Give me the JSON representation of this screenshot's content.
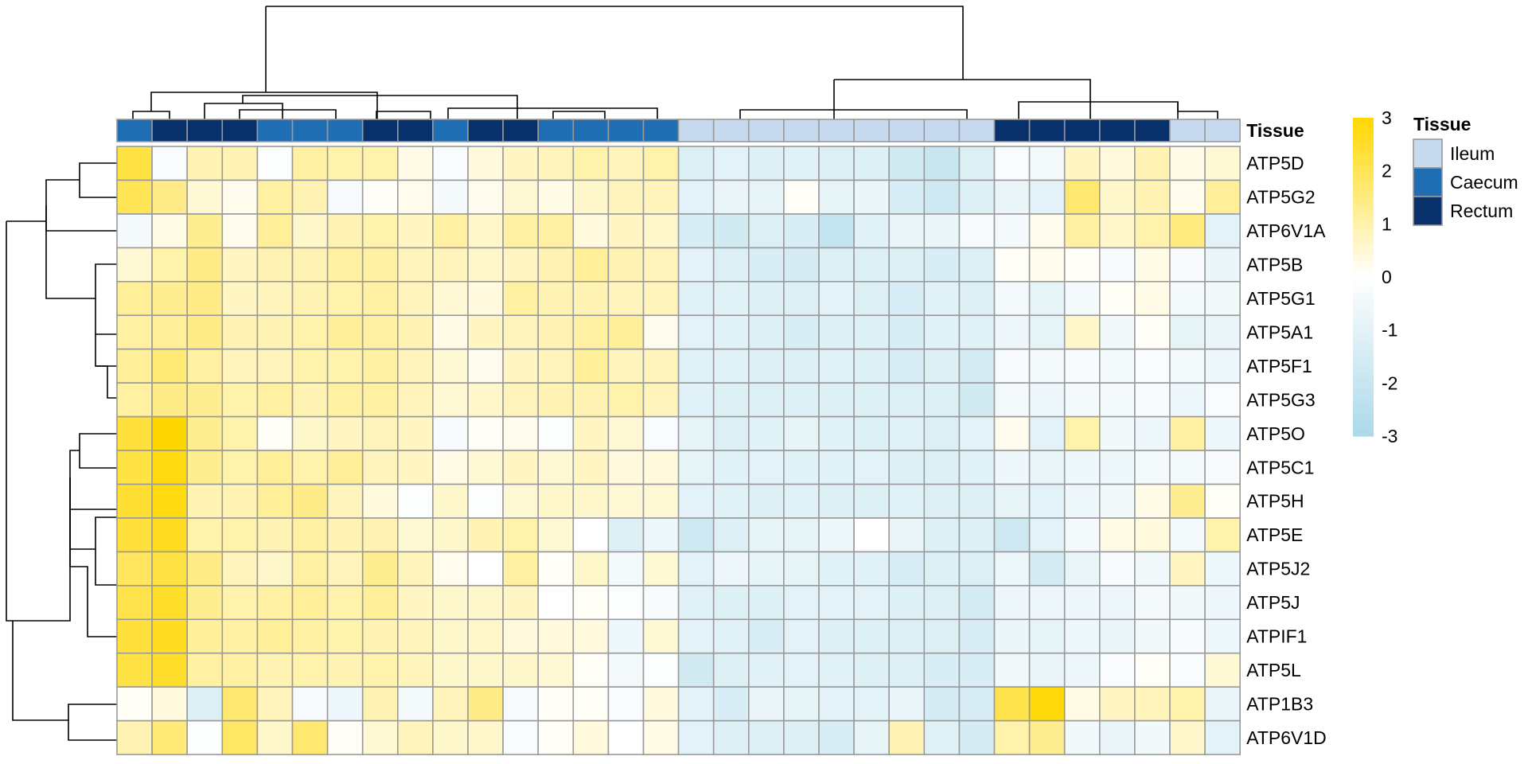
{
  "chart_data": {
    "type": "heatmap",
    "title": "",
    "xlabel": "",
    "ylabel": "",
    "rows": [
      "ATP5D",
      "ATP5G2",
      "ATP6V1A",
      "ATP5B",
      "ATP5G1",
      "ATP5A1",
      "ATP5F1",
      "ATP5G3",
      "ATP5O",
      "ATP5C1",
      "ATP5H",
      "ATP5E",
      "ATP5J2",
      "ATP5J",
      "ATPIF1",
      "ATP5L",
      "ATP1B3",
      "ATP6V1D"
    ],
    "columns": [
      "",
      "",
      "",
      "",
      "",
      "",
      "",
      "",
      "",
      "",
      "",
      "",
      "",
      "",
      "",
      "",
      "",
      "",
      "",
      "",
      "",
      "",
      "",
      "",
      "",
      "",
      "",
      "",
      "",
      "",
      "",
      ""
    ],
    "annotation": {
      "name": "Tissue",
      "legend_title": "Tissue",
      "levels": [
        {
          "name": "Ileum",
          "color": "#c6d9ef"
        },
        {
          "name": "Caecum",
          "color": "#1f6db3"
        },
        {
          "name": "Rectum",
          "color": "#08306b"
        }
      ],
      "column_tissue": [
        "Caecum",
        "Rectum",
        "Rectum",
        "Rectum",
        "Caecum",
        "Caecum",
        "Caecum",
        "Rectum",
        "Rectum",
        "Caecum",
        "Rectum",
        "Rectum",
        "Caecum",
        "Caecum",
        "Caecum",
        "Caecum",
        "Ileum",
        "Ileum",
        "Ileum",
        "Ileum",
        "Ileum",
        "Ileum",
        "Ileum",
        "Ileum",
        "Ileum",
        "Rectum",
        "Rectum",
        "Rectum",
        "Rectum",
        "Rectum",
        "Ileum",
        "Ileum"
      ]
    },
    "color_scale": {
      "min": -3,
      "max": 3,
      "low_color": "#abd9e9",
      "mid_color": "#ffffff",
      "high_color": "#ffd700",
      "ticks": [
        "3",
        "2",
        "1",
        "0",
        "-1",
        "-2",
        "-3"
      ],
      "tick_values": [
        3,
        2,
        1,
        0,
        -1,
        -2,
        -3
      ]
    },
    "values": [
      [
        2.2,
        -0.2,
        0.9,
        0.9,
        -0.1,
        1.1,
        1.0,
        1.0,
        0.3,
        -0.2,
        0.4,
        0.7,
        0.8,
        1.0,
        0.8,
        1.0,
        -1.3,
        -1.0,
        -1.2,
        -1.1,
        -1.3,
        -1.2,
        -1.6,
        -2.0,
        -1.3,
        -0.2,
        -0.4,
        0.7,
        0.4,
        0.9,
        0.3,
        0.5
      ],
      [
        2.0,
        1.4,
        0.5,
        0.2,
        1.1,
        0.9,
        -0.3,
        0.1,
        0.2,
        -0.4,
        0.2,
        0.5,
        0.3,
        0.6,
        0.8,
        0.8,
        -1.0,
        -0.8,
        -0.9,
        0.1,
        -0.9,
        -0.7,
        -1.4,
        -1.7,
        -1.2,
        -0.8,
        -1.0,
        1.7,
        0.6,
        0.9,
        0.2,
        1.2
      ],
      [
        -0.4,
        0.3,
        1.3,
        0.2,
        1.2,
        0.6,
        0.9,
        1.0,
        0.7,
        1.1,
        0.6,
        1.1,
        1.1,
        0.4,
        0.7,
        0.6,
        -1.4,
        -1.6,
        -1.3,
        -1.4,
        -2.1,
        -1.1,
        -0.8,
        -0.7,
        -0.3,
        -0.4,
        0.2,
        1.1,
        0.6,
        1.0,
        1.5,
        -1.0
      ],
      [
        0.5,
        1.0,
        1.4,
        0.7,
        0.9,
        0.9,
        1.1,
        1.1,
        0.8,
        0.8,
        0.6,
        0.7,
        0.9,
        1.2,
        0.9,
        0.8,
        -1.0,
        -1.3,
        -1.4,
        -1.5,
        -1.2,
        -1.3,
        -1.2,
        -1.4,
        -1.2,
        0.1,
        0.2,
        0.1,
        -0.3,
        0.3,
        -0.3,
        -0.7
      ],
      [
        1.2,
        1.3,
        1.4,
        0.7,
        0.8,
        0.9,
        1.0,
        1.1,
        0.8,
        0.5,
        0.4,
        1.1,
        0.9,
        0.9,
        0.8,
        0.8,
        -1.1,
        -1.1,
        -1.2,
        -1.3,
        -1.0,
        -1.3,
        -1.4,
        -1.1,
        -1.2,
        -0.4,
        -0.9,
        -0.4,
        0.1,
        0.3,
        -0.4,
        -0.5
      ],
      [
        1.1,
        1.2,
        1.4,
        0.9,
        0.9,
        1.0,
        1.2,
        1.1,
        0.9,
        0.3,
        0.7,
        0.8,
        0.9,
        1.1,
        1.2,
        0.2,
        -1.0,
        -1.1,
        -1.3,
        -1.4,
        -1.2,
        -1.2,
        -1.4,
        -1.1,
        -1.1,
        -0.6,
        -0.9,
        0.6,
        -0.5,
        0.1,
        -0.9,
        -0.8
      ],
      [
        1.2,
        1.6,
        1.1,
        0.8,
        0.8,
        1.0,
        1.0,
        1.1,
        0.8,
        0.5,
        0.2,
        0.7,
        0.8,
        1.2,
        0.8,
        0.8,
        -1.1,
        -1.1,
        -1.2,
        -1.2,
        -1.1,
        -1.2,
        -1.4,
        -1.2,
        -1.5,
        -0.3,
        -0.4,
        -0.3,
        -0.4,
        -0.2,
        -0.4,
        -0.6
      ],
      [
        1.1,
        1.4,
        1.3,
        1.0,
        1.1,
        0.9,
        1.1,
        1.1,
        0.8,
        0.5,
        0.6,
        0.8,
        0.9,
        0.9,
        1.0,
        0.8,
        -1.1,
        -1.2,
        -1.3,
        -1.2,
        -1.2,
        -1.2,
        -1.3,
        -1.2,
        -1.6,
        -0.4,
        -0.6,
        -0.4,
        -0.4,
        -0.3,
        -0.6,
        -0.2
      ],
      [
        2.3,
        3.0,
        1.3,
        1.0,
        0.1,
        0.6,
        0.7,
        0.8,
        0.7,
        -0.3,
        0.1,
        0.2,
        -0.1,
        0.7,
        0.5,
        -0.2,
        -0.9,
        -1.3,
        -1.1,
        -0.9,
        -1.1,
        -1.2,
        -1.1,
        -1.3,
        -1.0,
        0.2,
        -1.0,
        1.0,
        -0.5,
        -0.6,
        1.1,
        -0.6
      ],
      [
        2.2,
        2.8,
        1.3,
        1.0,
        1.2,
        1.0,
        1.2,
        0.8,
        0.7,
        0.3,
        0.5,
        0.7,
        0.5,
        0.7,
        0.4,
        0.4,
        -0.9,
        -1.1,
        -1.0,
        -1.1,
        -1.1,
        -1.0,
        -1.2,
        -1.2,
        -1.1,
        -0.6,
        -0.8,
        -0.6,
        -0.6,
        -0.4,
        -0.4,
        -0.3
      ],
      [
        2.4,
        2.8,
        0.9,
        0.9,
        1.2,
        1.4,
        0.8,
        0.4,
        -0.1,
        0.6,
        -0.1,
        0.5,
        0.6,
        0.6,
        0.5,
        0.5,
        -1.0,
        -1.1,
        -1.2,
        -1.1,
        -1.2,
        -1.2,
        -1.1,
        -1.3,
        -1.3,
        -0.9,
        -1.0,
        -0.6,
        -0.5,
        0.3,
        1.3,
        0.1
      ],
      [
        2.3,
        2.6,
        1.0,
        1.0,
        0.9,
        1.1,
        0.9,
        0.9,
        0.5,
        0.6,
        0.9,
        1.0,
        0.5,
        0.0,
        -1.2,
        -0.6,
        -1.7,
        -1.2,
        -0.9,
        -0.9,
        -0.6,
        0.0,
        -0.8,
        -1.2,
        -1.2,
        -1.7,
        -1.0,
        -0.4,
        0.3,
        0.4,
        -0.4,
        1.0
      ],
      [
        1.9,
        2.2,
        1.4,
        0.8,
        0.6,
        1.1,
        0.8,
        1.3,
        0.8,
        0.2,
        0.0,
        1.1,
        0.1,
        0.6,
        -0.4,
        0.5,
        -1.0,
        -0.6,
        -0.9,
        -0.9,
        -1.1,
        -1.1,
        -1.4,
        -1.2,
        -1.3,
        -0.6,
        -1.5,
        -0.8,
        -0.3,
        -0.5,
        0.7,
        -0.6
      ],
      [
        2.1,
        2.5,
        1.3,
        1.0,
        1.1,
        1.2,
        1.0,
        1.2,
        0.7,
        0.6,
        0.6,
        0.7,
        0.0,
        0.1,
        -0.1,
        -0.3,
        -1.1,
        -1.2,
        -1.2,
        -1.0,
        -1.0,
        -1.0,
        -1.2,
        -1.3,
        -1.5,
        -0.6,
        -0.6,
        -0.6,
        -0.6,
        -0.4,
        -0.5,
        -0.6
      ],
      [
        2.3,
        2.6,
        1.2,
        1.1,
        1.2,
        1.1,
        1.0,
        0.9,
        0.8,
        0.6,
        0.6,
        0.4,
        0.4,
        0.4,
        -0.6,
        0.5,
        -1.0,
        -1.1,
        -1.4,
        -1.0,
        -1.2,
        -1.2,
        -1.2,
        -1.3,
        -1.4,
        -0.7,
        -0.9,
        -0.6,
        -0.7,
        -0.5,
        -0.3,
        -0.6
      ],
      [
        2.2,
        2.5,
        1.1,
        1.1,
        0.9,
        1.0,
        0.9,
        1.0,
        0.8,
        0.6,
        0.6,
        0.6,
        0.5,
        0.1,
        -0.4,
        -0.1,
        -1.6,
        -1.2,
        -1.1,
        -1.0,
        -1.1,
        -1.2,
        -1.2,
        -1.4,
        -1.4,
        -0.5,
        -0.7,
        -0.6,
        -0.2,
        0.1,
        -0.2,
        0.5
      ],
      [
        0.1,
        0.4,
        -1.3,
        1.7,
        0.8,
        -0.3,
        -0.6,
        0.9,
        -0.4,
        0.8,
        1.4,
        -0.3,
        0.1,
        0.1,
        -0.2,
        0.4,
        -1.0,
        -1.4,
        -0.8,
        -0.9,
        -1.0,
        -1.0,
        -0.7,
        -1.5,
        -1.4,
        2.1,
        2.9,
        0.3,
        0.7,
        0.8,
        1.0,
        -0.8
      ],
      [
        0.9,
        1.6,
        -0.1,
        1.8,
        0.6,
        1.7,
        0.1,
        0.5,
        0.8,
        0.6,
        0.6,
        -0.2,
        0.1,
        0.4,
        0.0,
        0.3,
        -1.0,
        -1.2,
        -1.3,
        -1.2,
        -1.4,
        -0.9,
        0.9,
        -1.1,
        -1.5,
        1.0,
        1.3,
        -0.5,
        -0.7,
        -0.5,
        0.6,
        -1.0
      ]
    ]
  }
}
